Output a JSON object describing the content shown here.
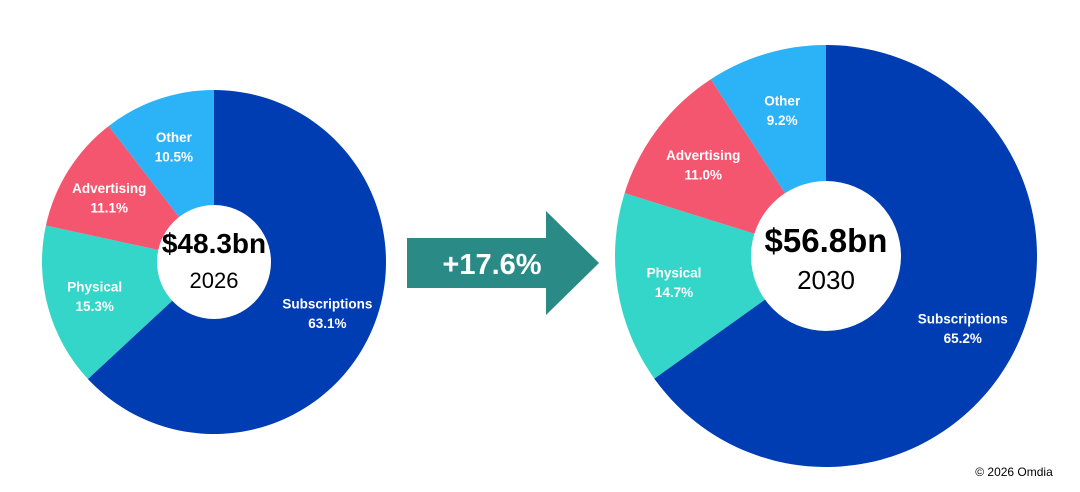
{
  "chart_data": [
    {
      "type": "pie",
      "variant": "donut",
      "center_total": "$48.3bn",
      "center_year": "2026",
      "slices": [
        {
          "label": "Subscriptions",
          "value_text": "63.1%",
          "value": 63.1,
          "color": "#003DB3"
        },
        {
          "label": "Physical",
          "value_text": "15.3%",
          "value": 15.3,
          "color": "#33D6C8"
        },
        {
          "label": "Advertising",
          "value_text": "11.1%",
          "value": 11.1,
          "color": "#F4566F"
        },
        {
          "label": "Other",
          "value_text": "10.5%",
          "value": 10.5,
          "color": "#2CB2F6"
        }
      ]
    },
    {
      "type": "pie",
      "variant": "donut",
      "center_total": "$56.8bn",
      "center_year": "2030",
      "slices": [
        {
          "label": "Subscriptions",
          "value_text": "65.2%",
          "value": 65.2,
          "color": "#003DB3"
        },
        {
          "label": "Physical",
          "value_text": "14.7%",
          "value": 14.7,
          "color": "#33D6C8"
        },
        {
          "label": "Advertising",
          "value_text": "11.0%",
          "value": 11.0,
          "color": "#F4566F"
        },
        {
          "label": "Other",
          "value_text": "9.2%",
          "value": 9.2,
          "color": "#2CB2F6"
        }
      ]
    }
  ],
  "growth": {
    "label": "+17.6%",
    "color": "#2A8A86"
  },
  "copyright": "© 2026 Omdia"
}
